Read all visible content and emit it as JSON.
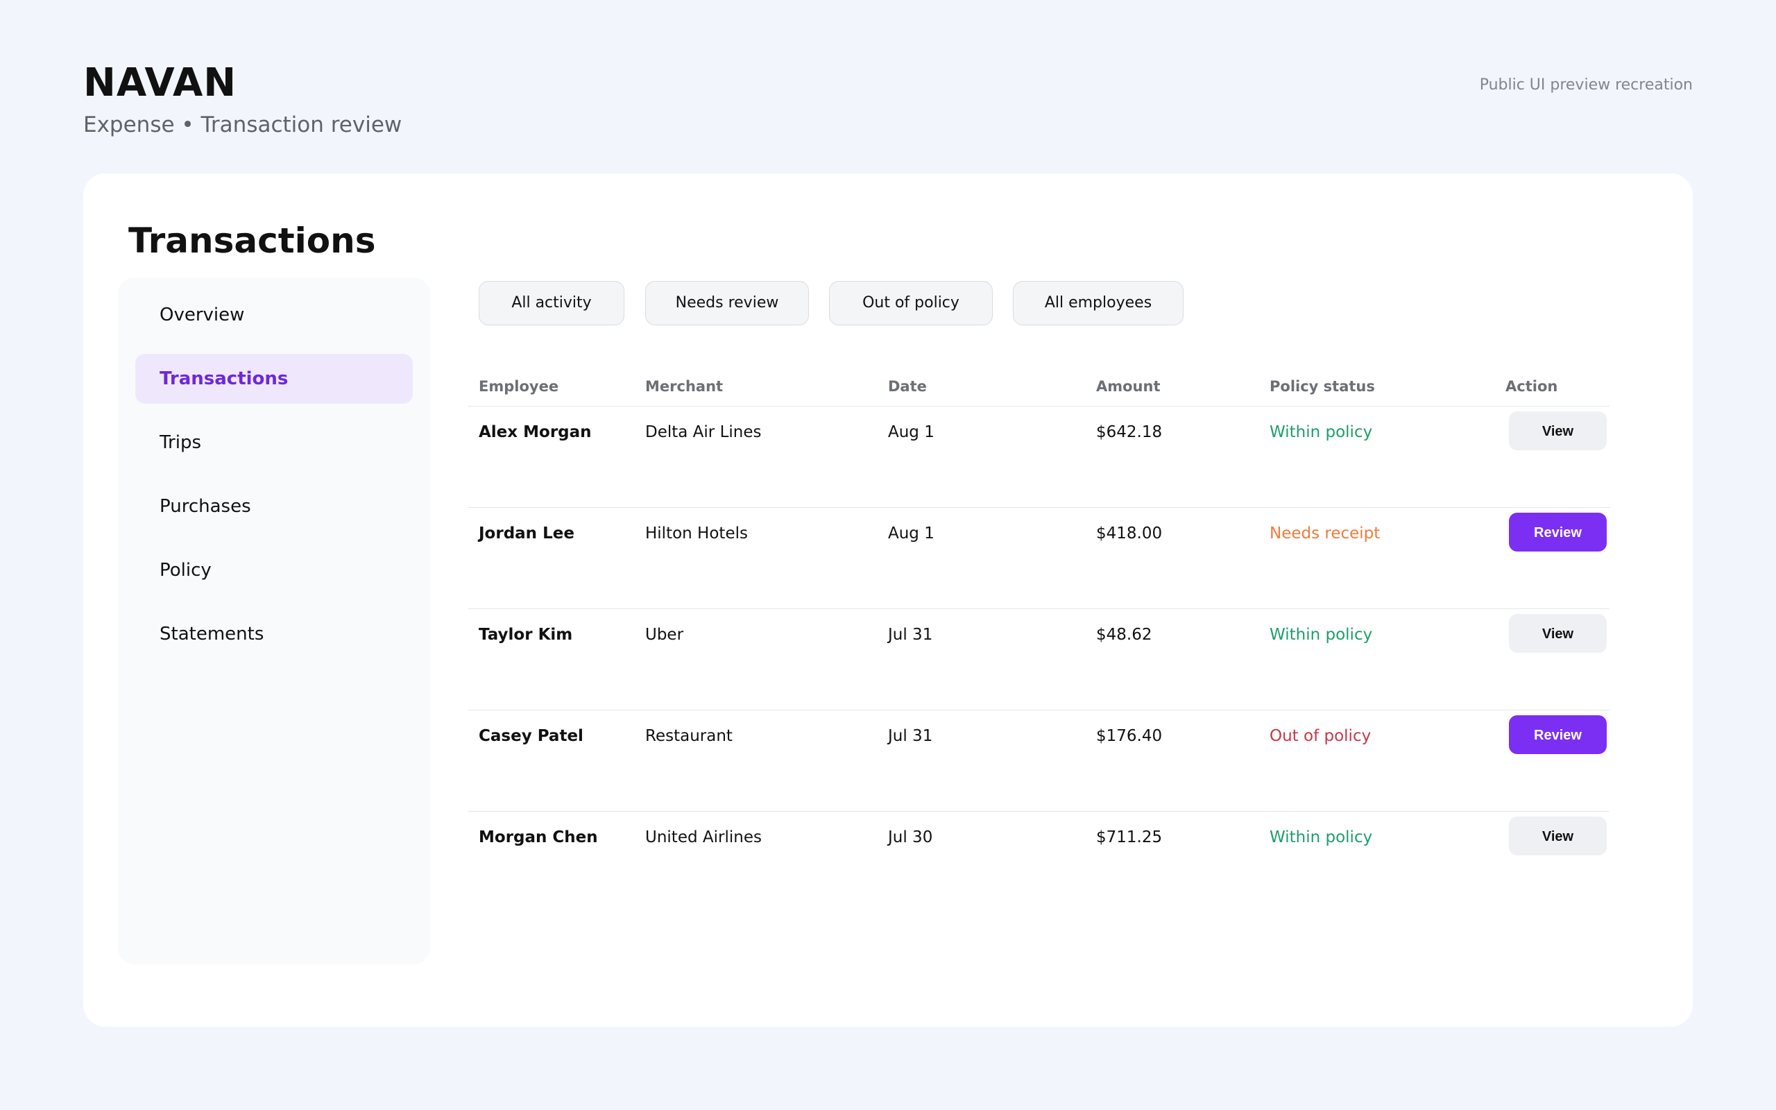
{
  "header": {
    "brand": "NAVAN",
    "subtitle": "Expense • Transaction review",
    "preview_note": "Public UI preview recreation"
  },
  "page": {
    "title": "Transactions"
  },
  "sidebar": {
    "items": [
      {
        "label": "Overview",
        "active": false
      },
      {
        "label": "Transactions",
        "active": true
      },
      {
        "label": "Trips",
        "active": false
      },
      {
        "label": "Purchases",
        "active": false
      },
      {
        "label": "Policy",
        "active": false
      },
      {
        "label": "Statements",
        "active": false
      }
    ]
  },
  "filters": [
    {
      "label": "All activity"
    },
    {
      "label": "Needs review"
    },
    {
      "label": "Out of policy"
    },
    {
      "label": "All employees"
    }
  ],
  "table": {
    "columns": [
      "Employee",
      "Merchant",
      "Date",
      "Amount",
      "Policy status",
      "Action"
    ],
    "rows": [
      {
        "employee": "Alex Morgan",
        "merchant": "Delta Air Lines",
        "date": "Aug 1",
        "amount": "$642.18",
        "status": "Within policy",
        "status_type": "within",
        "action": "View"
      },
      {
        "employee": "Jordan Lee",
        "merchant": "Hilton Hotels",
        "date": "Aug 1",
        "amount": "$418.00",
        "status": "Needs receipt",
        "status_type": "receipt",
        "action": "Review"
      },
      {
        "employee": "Taylor Kim",
        "merchant": "Uber",
        "date": "Jul 31",
        "amount": "$48.62",
        "status": "Within policy",
        "status_type": "within",
        "action": "View"
      },
      {
        "employee": "Casey Patel",
        "merchant": "Restaurant",
        "date": "Jul 31",
        "amount": "$176.40",
        "status": "Out of policy",
        "status_type": "out",
        "action": "Review"
      },
      {
        "employee": "Morgan Chen",
        "merchant": "United Airlines",
        "date": "Jul 30",
        "amount": "$711.25",
        "status": "Within policy",
        "status_type": "within",
        "action": "View"
      }
    ]
  },
  "colors": {
    "accent": "#7b2ff2",
    "active_nav_bg": "#efe8fd",
    "active_nav_text": "#6d28d9",
    "within_policy": "#1f9d6b",
    "needs_receipt": "#f07a3a",
    "out_of_policy": "#c8374a",
    "page_bg": "#f2f6fc"
  }
}
